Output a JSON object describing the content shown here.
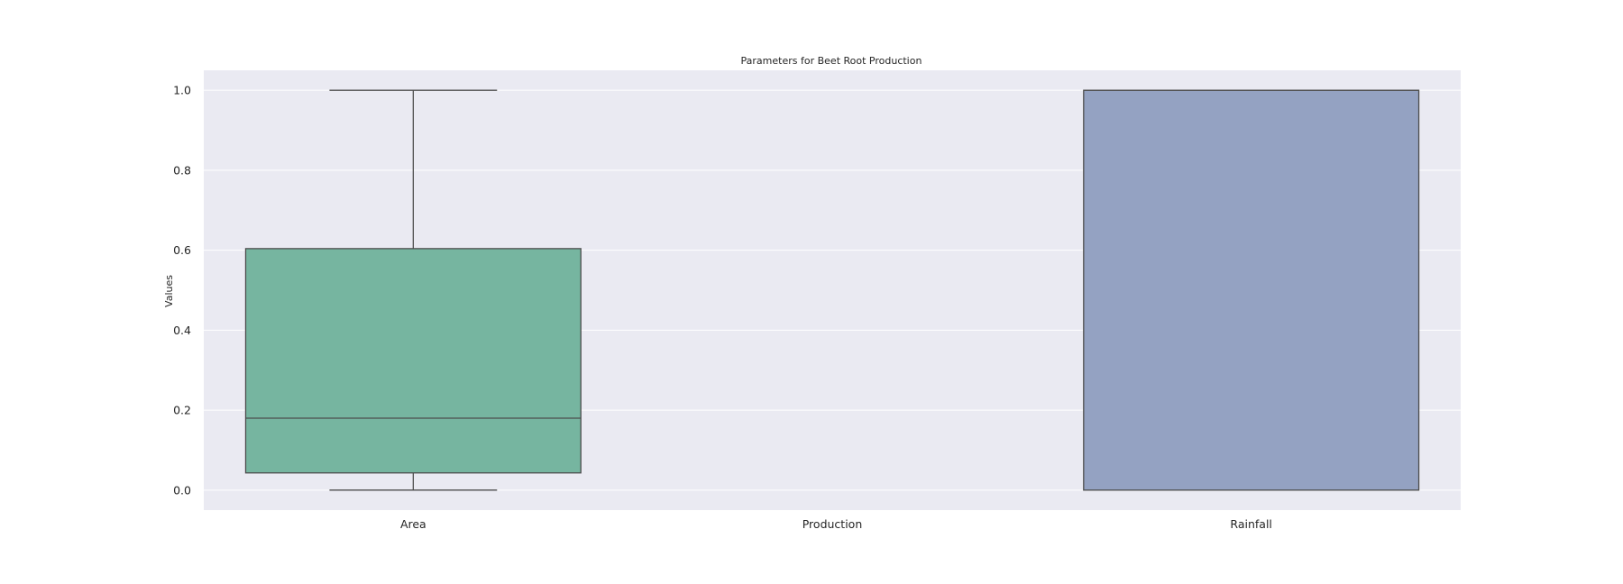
{
  "chart_data": {
    "type": "box",
    "title": "Parameters for Beet Root Production",
    "xlabel": "",
    "ylabel": "Values",
    "ylim": [
      -0.05,
      1.05
    ],
    "yticks": [
      "0.0",
      "0.2",
      "0.4",
      "0.6",
      "0.8",
      "1.0"
    ],
    "grid": true,
    "background_color": "#eaeaf2",
    "categories": [
      "Area",
      "Production",
      "Rainfall"
    ],
    "boxes": [
      {
        "category": "Area",
        "whisker_low": 0.0,
        "q1": 0.043,
        "median": 0.18,
        "q3": 0.604,
        "whisker_high": 1.0,
        "color": "#76b5a0"
      },
      {
        "category": "Production",
        "whisker_low": null,
        "q1": null,
        "median": null,
        "q3": null,
        "whisker_high": null,
        "color": "#e9a07f"
      },
      {
        "category": "Rainfall",
        "whisker_low": 0.0,
        "q1": 0.0,
        "median": 1.0,
        "q3": 1.0,
        "whisker_high": 1.0,
        "color": "#94a2c2"
      }
    ]
  }
}
